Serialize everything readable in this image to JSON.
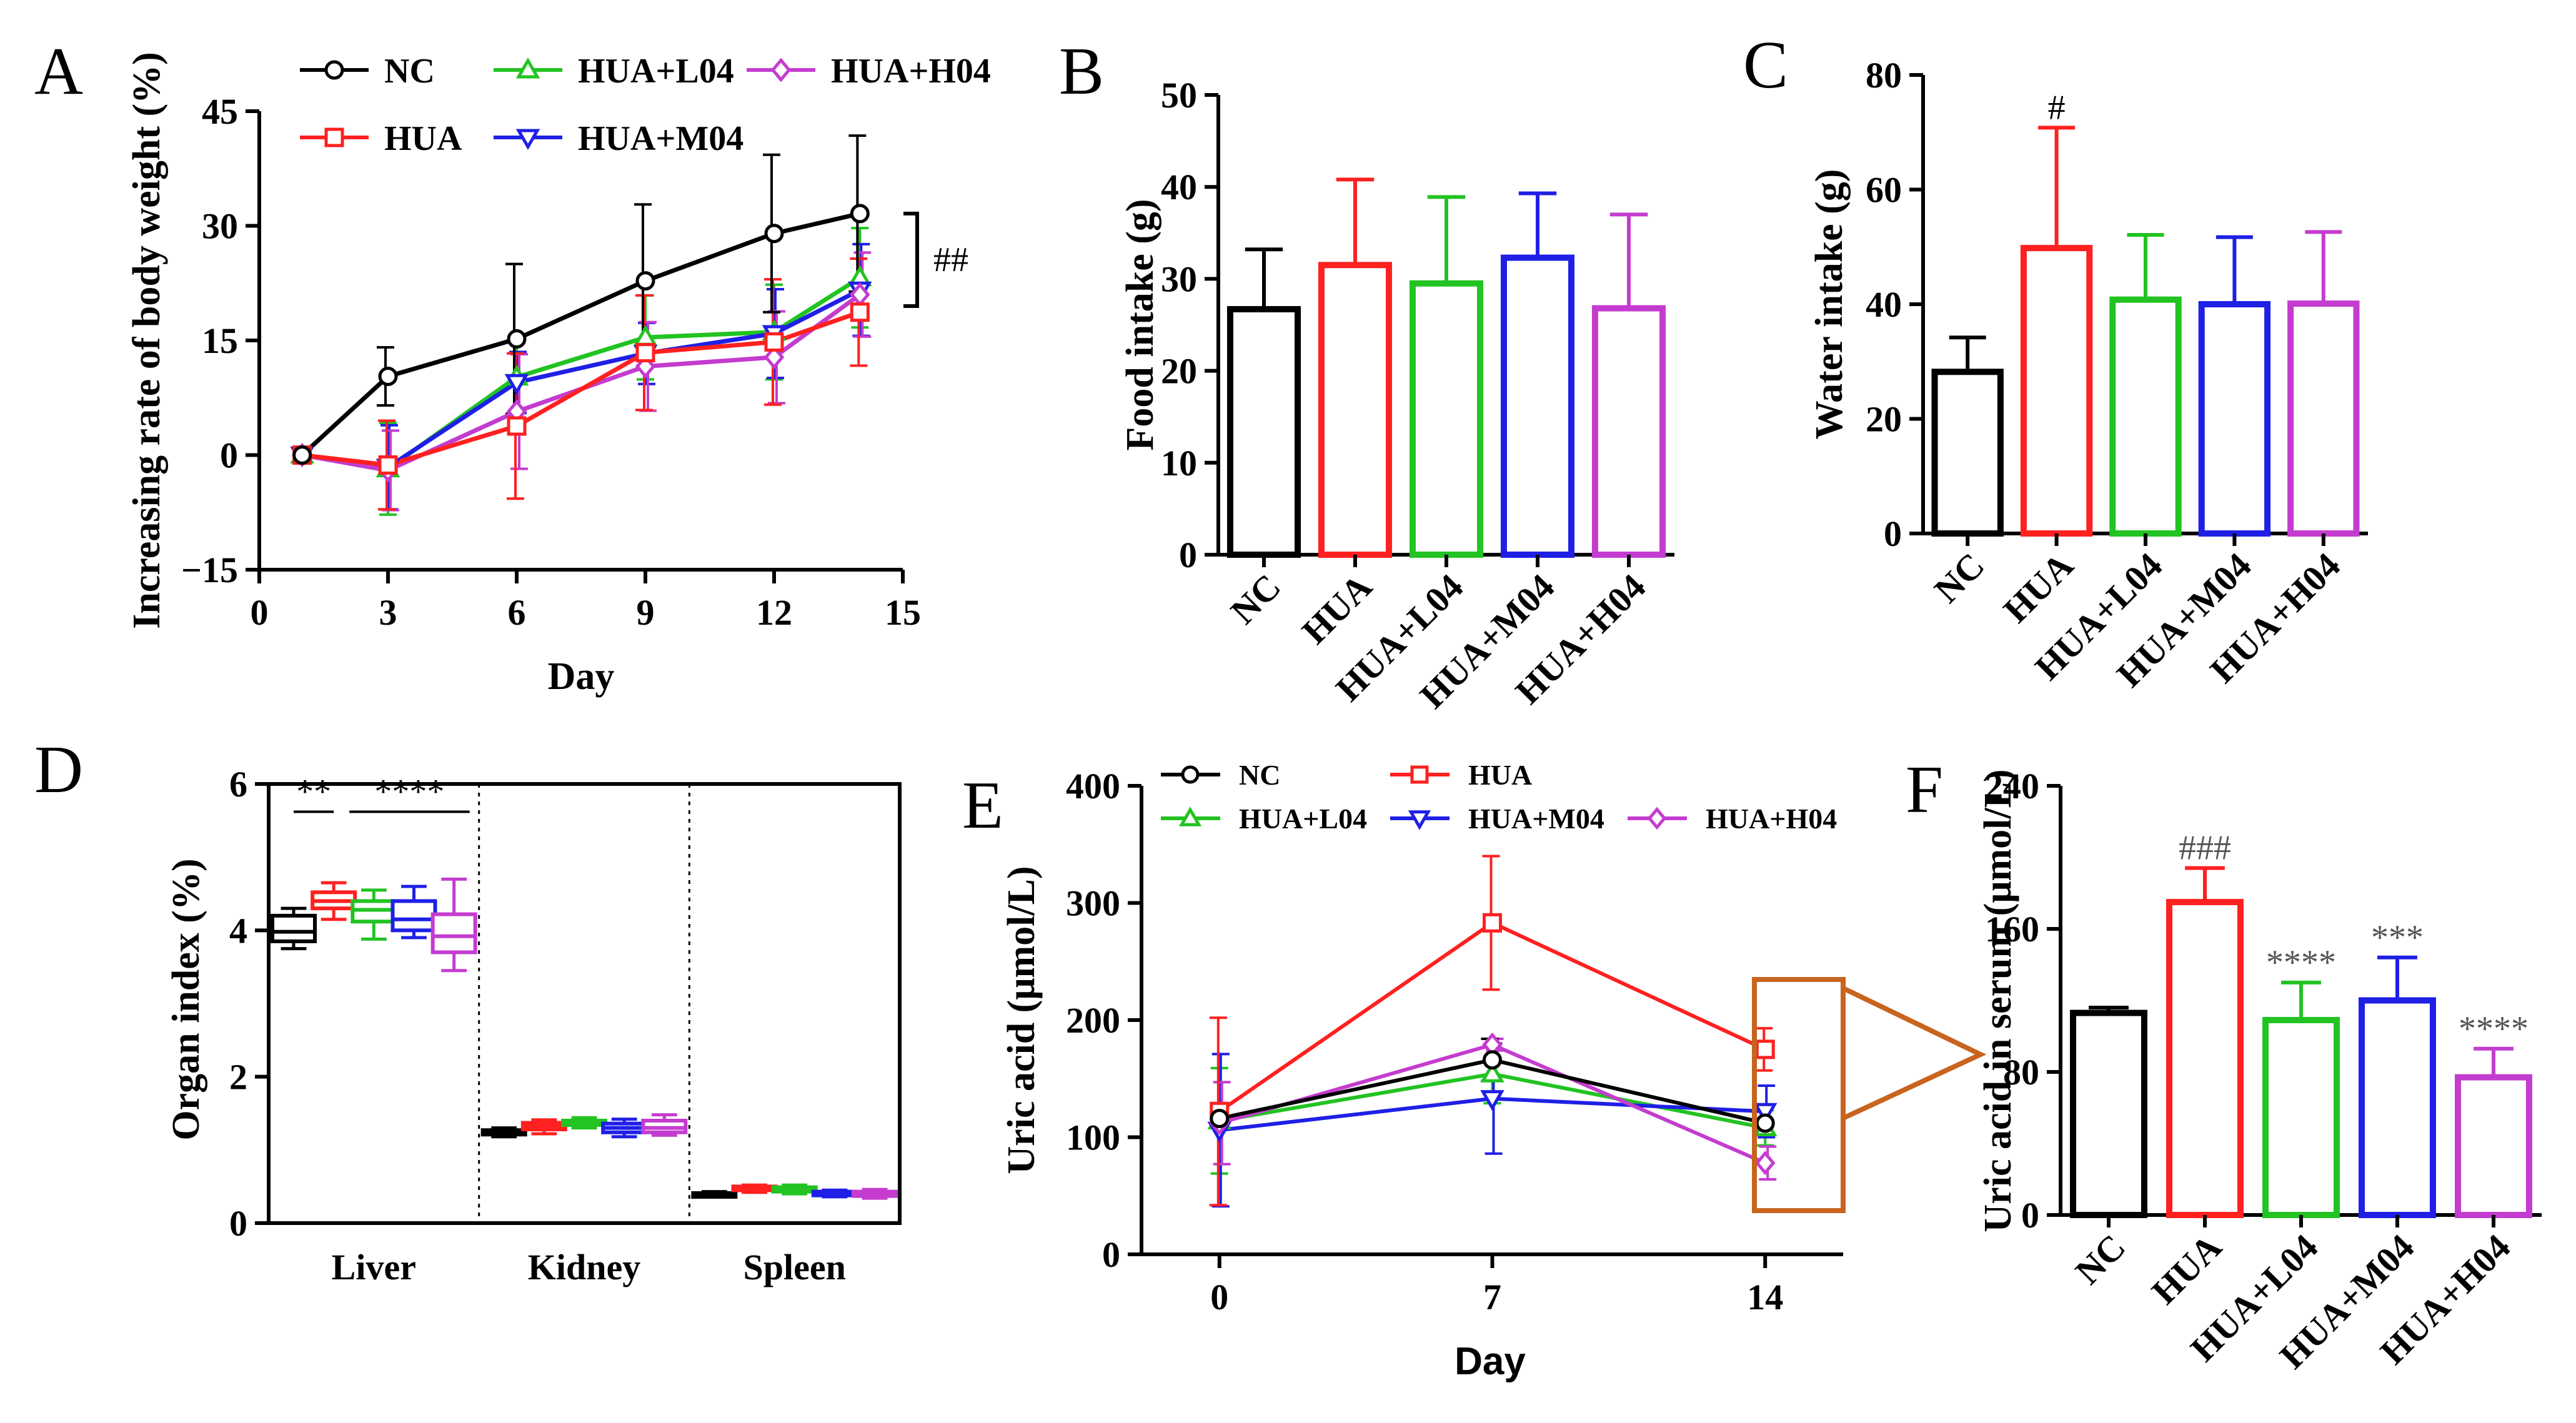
{
  "colors": {
    "NC": "#000000",
    "HUA": "#ff2020",
    "HUA+L04": "#22c322",
    "HUA+M04": "#1f1fe6",
    "HUA+H04": "#c43ccf",
    "callout": "#c8641e"
  },
  "group_names": [
    "NC",
    "HUA",
    "HUA+L04",
    "HUA+M04",
    "HUA+H04"
  ],
  "panels": {
    "A": {
      "letter": "A",
      "sig": "##"
    },
    "B": {
      "letter": "B"
    },
    "C": {
      "letter": "C",
      "sig": "#"
    },
    "D": {
      "letter": "D",
      "sig_liver_hua": "**",
      "sig_liver_treat": "****"
    },
    "E": {
      "letter": "E"
    },
    "F": {
      "letter": "F",
      "sig": [
        "",
        "###",
        "****",
        "***",
        "****"
      ]
    }
  },
  "chart_data": [
    {
      "panel": "A",
      "type": "line",
      "xlabel": "Day",
      "ylabel": "Increasing rate of body weight (%)",
      "xlim": [
        0,
        15
      ],
      "ylim": [
        -15,
        45
      ],
      "xticks": [
        0,
        3,
        6,
        9,
        12,
        15
      ],
      "yticks": [
        -15,
        0,
        15,
        30,
        45
      ],
      "ytick_labels": [
        "−15",
        "0",
        "15",
        "30",
        "45"
      ],
      "x": [
        1,
        3,
        6,
        9,
        12,
        14
      ],
      "series": [
        {
          "name": "NC",
          "marker": "circle",
          "values": [
            0,
            10.3,
            15.2,
            22.8,
            29.0,
            31.6
          ],
          "err": [
            0,
            3.8,
            9.8,
            10.0,
            10.3,
            10.2
          ]
        },
        {
          "name": "HUA",
          "marker": "square",
          "values": [
            0,
            -1.3,
            3.8,
            13.4,
            14.8,
            18.7
          ],
          "err": [
            0,
            5.8,
            9.5,
            7.5,
            8.2,
            7.0
          ]
        },
        {
          "name": "HUA+L04",
          "marker": "triangle-up",
          "values": [
            0,
            -1.8,
            10.2,
            15.4,
            16.1,
            23.2
          ],
          "err": [
            0,
            6.0,
            4.5,
            5.5,
            6.2,
            6.5
          ]
        },
        {
          "name": "HUA+M04",
          "marker": "triangle-down",
          "values": [
            0,
            -1.6,
            9.5,
            13.3,
            15.9,
            21.6
          ],
          "err": [
            0,
            5.5,
            4.0,
            4.0,
            5.8,
            6.0
          ]
        },
        {
          "name": "HUA+H04",
          "marker": "diamond",
          "values": [
            0,
            -2.0,
            5.7,
            11.6,
            12.8,
            21.0
          ],
          "err": [
            0,
            5.2,
            7.5,
            5.8,
            6.0,
            5.5
          ]
        }
      ]
    },
    {
      "panel": "B",
      "type": "bar",
      "xlabel": "",
      "ylabel": "Food intake (g)",
      "ylim": [
        0,
        50
      ],
      "yticks": [
        0,
        10,
        20,
        30,
        40,
        50
      ],
      "categories": [
        "NC",
        "HUA",
        "HUA+L04",
        "HUA+M04",
        "HUA+H04"
      ],
      "values": [
        26.7,
        31.5,
        29.5,
        32.3,
        26.8
      ],
      "err": [
        6.5,
        9.3,
        9.4,
        7.0,
        10.2
      ]
    },
    {
      "panel": "C",
      "type": "bar",
      "xlabel": "",
      "ylabel": "Water intake (g)",
      "ylim": [
        0,
        80
      ],
      "yticks": [
        0,
        20,
        40,
        60,
        80
      ],
      "categories": [
        "NC",
        "HUA",
        "HUA+L04",
        "HUA+M04",
        "HUA+H04"
      ],
      "values": [
        28.2,
        49.8,
        40.8,
        40.0,
        40.1
      ],
      "err": [
        6.0,
        21.0,
        11.3,
        11.7,
        12.5
      ]
    },
    {
      "panel": "D",
      "type": "box",
      "xlabel": "",
      "ylabel": "Organ index (%)",
      "ylim": [
        0,
        6
      ],
      "yticks": [
        0,
        2,
        4,
        6
      ],
      "categories": [
        "Liver",
        "Kidney",
        "Spleen"
      ],
      "groups": [
        "NC",
        "HUA",
        "HUA+L04",
        "HUA+M04",
        "HUA+H04"
      ],
      "boxes": {
        "Liver": [
          {
            "min": 3.75,
            "q1": 3.85,
            "median": 3.98,
            "q3": 4.2,
            "max": 4.3
          },
          {
            "min": 4.15,
            "q1": 4.3,
            "median": 4.4,
            "q3": 4.52,
            "max": 4.65
          },
          {
            "min": 3.88,
            "q1": 4.12,
            "median": 4.28,
            "q3": 4.4,
            "max": 4.55
          },
          {
            "min": 3.9,
            "q1": 4.0,
            "median": 4.15,
            "q3": 4.4,
            "max": 4.6
          },
          {
            "min": 3.45,
            "q1": 3.7,
            "median": 3.92,
            "q3": 4.22,
            "max": 4.7
          }
        ],
        "Kidney": [
          {
            "min": 1.18,
            "q1": 1.21,
            "median": 1.24,
            "q3": 1.27,
            "max": 1.3
          },
          {
            "min": 1.22,
            "q1": 1.28,
            "median": 1.33,
            "q3": 1.37,
            "max": 1.41
          },
          {
            "min": 1.3,
            "q1": 1.34,
            "median": 1.37,
            "q3": 1.4,
            "max": 1.44
          },
          {
            "min": 1.18,
            "q1": 1.24,
            "median": 1.3,
            "q3": 1.36,
            "max": 1.42
          },
          {
            "min": 1.2,
            "q1": 1.24,
            "median": 1.3,
            "q3": 1.4,
            "max": 1.48
          }
        ],
        "Spleen": [
          {
            "min": 0.36,
            "q1": 0.38,
            "median": 0.4,
            "q3": 0.41,
            "max": 0.43
          },
          {
            "min": 0.42,
            "q1": 0.45,
            "median": 0.47,
            "q3": 0.5,
            "max": 0.52
          },
          {
            "min": 0.4,
            "q1": 0.43,
            "median": 0.46,
            "q3": 0.49,
            "max": 0.52
          },
          {
            "min": 0.36,
            "q1": 0.38,
            "median": 0.4,
            "q3": 0.43,
            "max": 0.45
          },
          {
            "min": 0.34,
            "q1": 0.37,
            "median": 0.4,
            "q3": 0.43,
            "max": 0.46
          }
        ]
      }
    },
    {
      "panel": "E",
      "type": "line",
      "xlabel": "Day",
      "ylabel": "Uric acid  (μmol/L)",
      "xlim": [
        -2,
        16
      ],
      "ylim": [
        0,
        400
      ],
      "xticks": [
        0,
        7,
        14
      ],
      "yticks": [
        0,
        100,
        200,
        300,
        400
      ],
      "x": [
        0,
        7,
        14
      ],
      "series": [
        {
          "name": "NC",
          "marker": "circle",
          "values": [
            116,
            166,
            112
          ],
          "err": [
            0,
            18,
            10
          ]
        },
        {
          "name": "HUA",
          "marker": "square",
          "values": [
            122,
            283,
            175
          ],
          "err": [
            80,
            57,
            18
          ]
        },
        {
          "name": "HUA+L04",
          "marker": "triangle-up",
          "values": [
            114,
            154,
            108
          ],
          "err": [
            45,
            25,
            15
          ]
        },
        {
          "name": "HUA+M04",
          "marker": "triangle-down",
          "values": [
            106,
            133,
            122
          ],
          "err": [
            65,
            47,
            22
          ]
        },
        {
          "name": "HUA+H04",
          "marker": "diamond",
          "values": [
            112,
            179,
            78
          ],
          "err": [
            35,
            5,
            14
          ]
        }
      ]
    },
    {
      "panel": "F",
      "type": "bar",
      "xlabel": "",
      "ylabel": "Uric acid in serum (μmol/L)",
      "ylim": [
        0,
        240
      ],
      "yticks": [
        0,
        80,
        160,
        240
      ],
      "categories": [
        "NC",
        "HUA",
        "HUA+L04",
        "HUA+M04",
        "HUA+H04"
      ],
      "values": [
        113,
        175,
        109,
        120,
        77
      ],
      "err": [
        3,
        19,
        21,
        24,
        16
      ]
    }
  ]
}
